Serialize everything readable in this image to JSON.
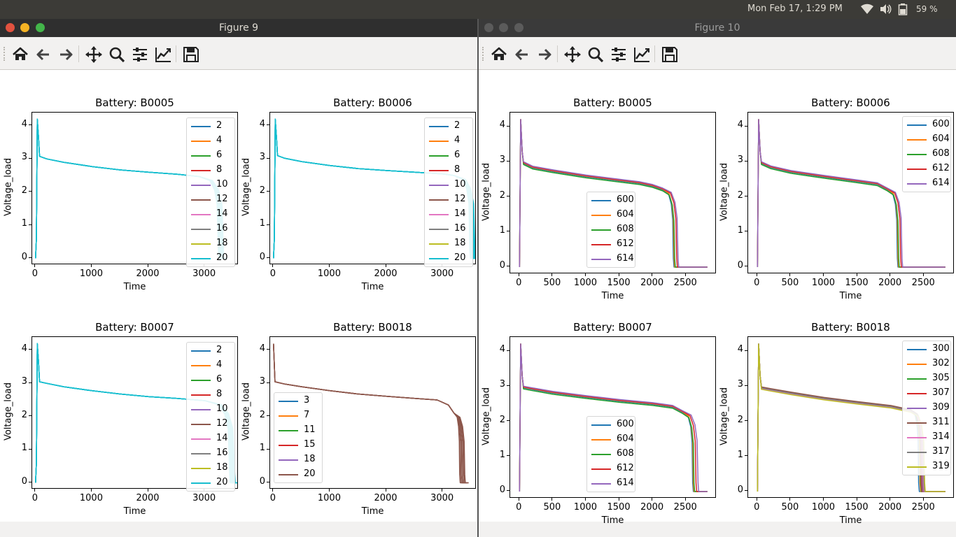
{
  "topbar": {
    "datetime": "Mon Feb 17,  1:29 PM",
    "battery_percent": "59 %",
    "icons": [
      "wifi-icon",
      "volume-icon",
      "battery-icon"
    ]
  },
  "palette": [
    "#1f77b4",
    "#ff7f0e",
    "#2ca02c",
    "#d62728",
    "#9467bd",
    "#8c564b",
    "#e377c2",
    "#7f7f7f",
    "#bcbd22",
    "#17becf"
  ],
  "toolbar_icons": [
    "home-icon",
    "back-arrow-icon",
    "forward-arrow-icon",
    "pan-icon",
    "zoom-icon",
    "subplots-config-icon",
    "edit-axis-icon",
    "save-icon"
  ],
  "windows": [
    {
      "title": "Figure 9",
      "panels": [
        {
          "title": "Battery: B0005",
          "xlabel": "Time",
          "ylabel": "Voltage_load",
          "chart_data": {
            "type": "line",
            "xlim": [
              -60,
              3600
            ],
            "ylim": [
              -0.2,
              4.4
            ],
            "xticks": [
              0,
              1000,
              2000,
              3000
            ],
            "yticks": [
              0,
              1,
              2,
              3,
              4
            ],
            "legend": [
              "2",
              "4",
              "6",
              "8",
              "10",
              "12",
              "14",
              "16",
              "18",
              "20"
            ],
            "legend_position": "right-edge",
            "end_times": [
              3240,
              3250,
              3260,
              3270,
              3280,
              3290,
              3300,
              3310,
              3320,
              3330
            ],
            "line_color": "#17becf",
            "profile": [
              [
                0,
                0
              ],
              [
                15,
                0.6
              ],
              [
                30,
                4.2
              ],
              [
                50,
                3.7
              ],
              [
                70,
                3.08
              ],
              [
                200,
                3.0
              ],
              [
                500,
                2.9
              ],
              [
                1000,
                2.77
              ],
              [
                1500,
                2.67
              ],
              [
                2000,
                2.6
              ],
              [
                2500,
                2.54
              ],
              [
                2900,
                2.47
              ]
            ]
          }
        },
        {
          "title": "Battery: B0006",
          "xlabel": "Time",
          "ylabel": "Voltage_load",
          "chart_data": {
            "type": "line",
            "xlim": [
              -60,
              3600
            ],
            "ylim": [
              -0.2,
              4.4
            ],
            "xticks": [
              0,
              1000,
              2000,
              3000
            ],
            "yticks": [
              0,
              1,
              2,
              3,
              4
            ],
            "legend": [
              "2",
              "4",
              "6",
              "8",
              "10",
              "12",
              "14",
              "16",
              "18",
              "20"
            ],
            "legend_position": "right-edge",
            "end_times": [
              3480,
              3490,
              3500,
              3510,
              3520,
              3530,
              3540,
              3550,
              3560,
              3570
            ],
            "line_color": "#17becf",
            "profile": [
              [
                0,
                0
              ],
              [
                15,
                0.6
              ],
              [
                30,
                4.2
              ],
              [
                50,
                3.7
              ],
              [
                70,
                3.1
              ],
              [
                200,
                3.02
              ],
              [
                500,
                2.92
              ],
              [
                1000,
                2.8
              ],
              [
                1500,
                2.71
              ],
              [
                2000,
                2.65
              ],
              [
                2500,
                2.6
              ],
              [
                3000,
                2.55
              ],
              [
                3200,
                2.5
              ]
            ]
          }
        },
        {
          "title": "Battery: B0007",
          "xlabel": "Time",
          "ylabel": "Voltage_load",
          "chart_data": {
            "type": "line",
            "xlim": [
              -60,
              3600
            ],
            "ylim": [
              -0.2,
              4.4
            ],
            "xticks": [
              0,
              1000,
              2000,
              3000
            ],
            "yticks": [
              0,
              1,
              2,
              3,
              4
            ],
            "legend": [
              "2",
              "4",
              "6",
              "8",
              "10",
              "12",
              "14",
              "16",
              "18",
              "20"
            ],
            "legend_position": "right-edge",
            "end_times": [
              3440,
              3450,
              3460,
              3470,
              3480,
              3490,
              3500,
              3510,
              3520,
              3530
            ],
            "line_color": "#17becf",
            "profile": [
              [
                0,
                0
              ],
              [
                15,
                0.6
              ],
              [
                30,
                4.2
              ],
              [
                50,
                3.7
              ],
              [
                70,
                3.05
              ],
              [
                200,
                3.0
              ],
              [
                500,
                2.9
              ],
              [
                1000,
                2.78
              ],
              [
                1500,
                2.68
              ],
              [
                2000,
                2.6
              ],
              [
                2500,
                2.55
              ],
              [
                3000,
                2.48
              ]
            ]
          }
        },
        {
          "title": "Battery: B0018",
          "xlabel": "Time",
          "ylabel": "Voltage_load",
          "chart_data": {
            "type": "line",
            "xlim": [
              -60,
              3600
            ],
            "ylim": [
              -0.2,
              4.4
            ],
            "xticks": [
              0,
              1000,
              2000,
              3000
            ],
            "yticks": [
              0,
              1,
              2,
              3,
              4
            ],
            "legend": [
              "3",
              "7",
              "11",
              "15",
              "18",
              "20"
            ],
            "legend_position": "center-left",
            "end_times": [
              3300,
              3320,
              3340,
              3360,
              3380,
              3390
            ],
            "line_color": "#8c564b",
            "profile": [
              [
                0,
                4.2
              ],
              [
                25,
                3.05
              ],
              [
                200,
                2.98
              ],
              [
                500,
                2.9
              ],
              [
                1000,
                2.78
              ],
              [
                1500,
                2.68
              ],
              [
                2000,
                2.61
              ],
              [
                2500,
                2.55
              ],
              [
                2900,
                2.5
              ],
              [
                3100,
                2.35
              ],
              [
                3200,
                2.1
              ]
            ]
          }
        }
      ]
    },
    {
      "title": "Figure 10",
      "panels": [
        {
          "title": "Battery: B0005",
          "xlabel": "Time",
          "ylabel": "Voltage_load",
          "chart_data": {
            "type": "line",
            "xlim": [
              -140,
              2960
            ],
            "ylim": [
              -0.2,
              4.4
            ],
            "xticks": [
              0,
              500,
              1000,
              1500,
              2000,
              2500
            ],
            "yticks": [
              0,
              1,
              2,
              3,
              4
            ],
            "legend": [
              "600",
              "604",
              "608",
              "612",
              "614"
            ],
            "legend_position": "lower-center",
            "end_times": [
              2310,
              2320,
              2330,
              2360,
              2380
            ],
            "tail_end": 2820,
            "offsets": [
              0,
              0.02,
              -0.03,
              0.03,
              0.05
            ],
            "profile": [
              [
                0,
                0
              ],
              [
                10,
                2.5
              ],
              [
                18,
                4.2
              ],
              [
                40,
                3.3
              ],
              [
                60,
                2.95
              ],
              [
                200,
                2.82
              ],
              [
                500,
                2.72
              ],
              [
                1000,
                2.57
              ],
              [
                1500,
                2.45
              ],
              [
                1800,
                2.38
              ],
              [
                2000,
                2.3
              ],
              [
                2150,
                2.2
              ]
            ]
          }
        },
        {
          "title": "Battery: B0006",
          "xlabel": "Time",
          "ylabel": "Voltage_load",
          "chart_data": {
            "type": "line",
            "xlim": [
              -140,
              2960
            ],
            "ylim": [
              -0.2,
              4.4
            ],
            "xticks": [
              0,
              500,
              1000,
              1500,
              2000,
              2500
            ],
            "yticks": [
              0,
              1,
              2,
              3,
              4
            ],
            "legend": [
              "600",
              "604",
              "608",
              "612",
              "614"
            ],
            "legend_position": "upper-right",
            "end_times": [
              2100,
              2110,
              2120,
              2150,
              2170
            ],
            "tail_end": 2820,
            "offsets": [
              0,
              0.02,
              -0.03,
              0.03,
              0.05
            ],
            "profile": [
              [
                0,
                0
              ],
              [
                10,
                2.5
              ],
              [
                18,
                4.2
              ],
              [
                40,
                3.3
              ],
              [
                60,
                2.95
              ],
              [
                200,
                2.83
              ],
              [
                500,
                2.7
              ],
              [
                1000,
                2.56
              ],
              [
                1500,
                2.43
              ],
              [
                1800,
                2.35
              ],
              [
                1950,
                2.2
              ]
            ]
          }
        },
        {
          "title": "Battery: B0007",
          "xlabel": "Time",
          "ylabel": "Voltage_load",
          "chart_data": {
            "type": "line",
            "xlim": [
              -140,
              2960
            ],
            "ylim": [
              -0.2,
              4.4
            ],
            "xticks": [
              0,
              500,
              1000,
              1500,
              2000,
              2500
            ],
            "yticks": [
              0,
              1,
              2,
              3,
              4
            ],
            "legend": [
              "600",
              "604",
              "608",
              "612",
              "614"
            ],
            "legend_position": "lower-center",
            "end_times": [
              2600,
              2610,
              2620,
              2650,
              2680
            ],
            "tail_end": 2820,
            "offsets": [
              0,
              0.02,
              -0.03,
              0.03,
              0.05
            ],
            "profile": [
              [
                0,
                0
              ],
              [
                10,
                2.5
              ],
              [
                18,
                4.2
              ],
              [
                40,
                3.3
              ],
              [
                60,
                2.95
              ],
              [
                200,
                2.9
              ],
              [
                500,
                2.8
              ],
              [
                1000,
                2.68
              ],
              [
                1500,
                2.57
              ],
              [
                2000,
                2.48
              ],
              [
                2300,
                2.4
              ],
              [
                2450,
                2.25
              ]
            ]
          }
        },
        {
          "title": "Battery: B0018",
          "xlabel": "Time",
          "ylabel": "Voltage_load",
          "chart_data": {
            "type": "line",
            "xlim": [
              -140,
              2960
            ],
            "ylim": [
              -0.2,
              4.4
            ],
            "xticks": [
              0,
              500,
              1000,
              1500,
              2000,
              2500
            ],
            "yticks": [
              0,
              1,
              2,
              3,
              4
            ],
            "legend": [
              "300",
              "302",
              "305",
              "307",
              "309",
              "311",
              "314",
              "317",
              "319"
            ],
            "legend_position": "upper-right",
            "end_times": [
              2420,
              2440,
              2450,
              2460,
              2470,
              2480,
              2490,
              2500,
              2510
            ],
            "tail_end": 2820,
            "offsets": [
              0.02,
              0,
              -0.02,
              0.01,
              -0.01,
              0.03,
              -0.03,
              0.0,
              -0.04
            ],
            "profile": [
              [
                0,
                0
              ],
              [
                10,
                2.5
              ],
              [
                18,
                4.2
              ],
              [
                40,
                3.3
              ],
              [
                60,
                2.95
              ],
              [
                200,
                2.9
              ],
              [
                500,
                2.8
              ],
              [
                1000,
                2.65
              ],
              [
                1500,
                2.53
              ],
              [
                2000,
                2.42
              ],
              [
                2300,
                2.3
              ]
            ]
          }
        }
      ]
    }
  ]
}
